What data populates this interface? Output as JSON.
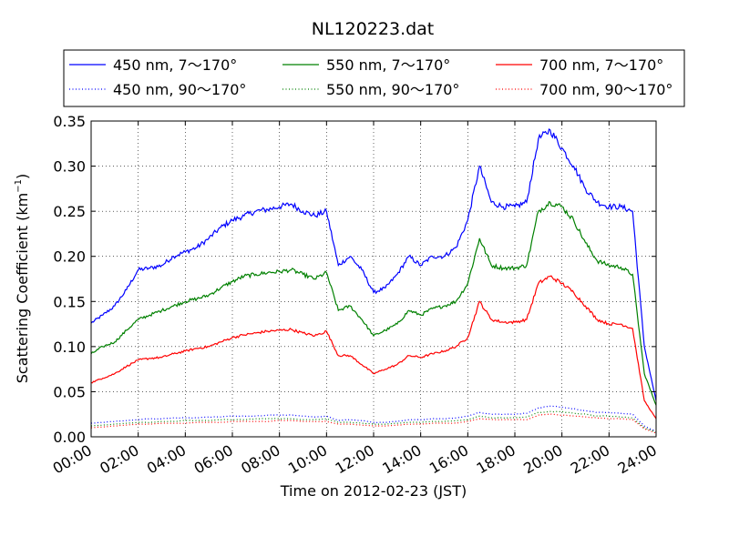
{
  "chart_data": {
    "type": "line",
    "title": "NL120223.dat",
    "xlabel": "Time on 2012-02-23 (JST)",
    "ylabel_main": "Scattering Coefficient (km",
    "ylabel_sup": "−1",
    "ylabel_end": ")",
    "xlim": [
      0,
      24
    ],
    "ylim": [
      0,
      0.35
    ],
    "grid": true,
    "legend_position": "top",
    "x_ticks": [
      {
        "v": 0,
        "label": "00:00"
      },
      {
        "v": 2,
        "label": "02:00"
      },
      {
        "v": 4,
        "label": "04:00"
      },
      {
        "v": 6,
        "label": "06:00"
      },
      {
        "v": 8,
        "label": "08:00"
      },
      {
        "v": 10,
        "label": "10:00"
      },
      {
        "v": 12,
        "label": "12:00"
      },
      {
        "v": 14,
        "label": "14:00"
      },
      {
        "v": 16,
        "label": "16:00"
      },
      {
        "v": 18,
        "label": "18:00"
      },
      {
        "v": 20,
        "label": "20:00"
      },
      {
        "v": 22,
        "label": "22:00"
      },
      {
        "v": 24,
        "label": "24:00"
      }
    ],
    "y_ticks": [
      {
        "v": 0,
        "label": "0.00"
      },
      {
        "v": 0.05,
        "label": "0.05"
      },
      {
        "v": 0.1,
        "label": "0.10"
      },
      {
        "v": 0.15,
        "label": "0.15"
      },
      {
        "v": 0.2,
        "label": "0.20"
      },
      {
        "v": 0.25,
        "label": "0.25"
      },
      {
        "v": 0.3,
        "label": "0.30"
      },
      {
        "v": 0.35,
        "label": "0.35"
      }
    ],
    "x": [
      0,
      0.5,
      1,
      1.5,
      2,
      2.5,
      3,
      3.5,
      4,
      4.5,
      5,
      5.5,
      6,
      6.5,
      7,
      7.5,
      8,
      8.5,
      9,
      9.5,
      10,
      10.5,
      11,
      11.5,
      12,
      12.5,
      13,
      13.5,
      14,
      14.5,
      15,
      15.5,
      16,
      16.5,
      17,
      17.5,
      18,
      18.5,
      19,
      19.5,
      20,
      20.5,
      21,
      21.5,
      22,
      22.5,
      23,
      23.5,
      24
    ],
    "series": [
      {
        "name": "450 nm, 7～170°",
        "color": "#0000ff",
        "style": "solid",
        "values": [
          0.126,
          0.135,
          0.145,
          0.163,
          0.185,
          0.187,
          0.19,
          0.2,
          0.205,
          0.21,
          0.22,
          0.232,
          0.24,
          0.245,
          0.25,
          0.252,
          0.255,
          0.258,
          0.25,
          0.245,
          0.25,
          0.19,
          0.2,
          0.185,
          0.16,
          0.165,
          0.18,
          0.2,
          0.19,
          0.2,
          0.2,
          0.21,
          0.24,
          0.3,
          0.26,
          0.255,
          0.255,
          0.26,
          0.33,
          0.34,
          0.32,
          0.3,
          0.275,
          0.26,
          0.255,
          0.255,
          0.25,
          0.1,
          0.04
        ]
      },
      {
        "name": "550 nm, 7～170°",
        "color": "#008000",
        "style": "solid",
        "values": [
          0.092,
          0.1,
          0.105,
          0.118,
          0.13,
          0.135,
          0.14,
          0.145,
          0.15,
          0.153,
          0.157,
          0.165,
          0.172,
          0.178,
          0.18,
          0.182,
          0.183,
          0.185,
          0.18,
          0.175,
          0.182,
          0.14,
          0.145,
          0.13,
          0.112,
          0.118,
          0.125,
          0.14,
          0.135,
          0.142,
          0.145,
          0.15,
          0.17,
          0.22,
          0.19,
          0.187,
          0.187,
          0.19,
          0.25,
          0.26,
          0.255,
          0.24,
          0.215,
          0.195,
          0.19,
          0.188,
          0.18,
          0.07,
          0.035
        ]
      },
      {
        "name": "700 nm, 7～170°",
        "color": "#ff0000",
        "style": "solid",
        "values": [
          0.06,
          0.065,
          0.07,
          0.078,
          0.085,
          0.087,
          0.088,
          0.092,
          0.095,
          0.098,
          0.1,
          0.105,
          0.11,
          0.113,
          0.115,
          0.117,
          0.118,
          0.119,
          0.115,
          0.112,
          0.117,
          0.09,
          0.09,
          0.08,
          0.07,
          0.075,
          0.08,
          0.09,
          0.088,
          0.092,
          0.095,
          0.1,
          0.11,
          0.15,
          0.13,
          0.127,
          0.127,
          0.13,
          0.17,
          0.178,
          0.17,
          0.16,
          0.145,
          0.13,
          0.125,
          0.125,
          0.12,
          0.04,
          0.02
        ]
      },
      {
        "name": "450 nm, 90～170°",
        "color": "#0000ff",
        "style": "dotted",
        "values": [
          0.015,
          0.016,
          0.017,
          0.018,
          0.019,
          0.02,
          0.02,
          0.021,
          0.021,
          0.021,
          0.022,
          0.022,
          0.023,
          0.023,
          0.023,
          0.024,
          0.024,
          0.024,
          0.023,
          0.022,
          0.023,
          0.018,
          0.019,
          0.018,
          0.016,
          0.016,
          0.017,
          0.019,
          0.019,
          0.02,
          0.02,
          0.021,
          0.023,
          0.027,
          0.025,
          0.025,
          0.025,
          0.026,
          0.032,
          0.034,
          0.033,
          0.031,
          0.029,
          0.027,
          0.027,
          0.026,
          0.025,
          0.012,
          0.006
        ]
      },
      {
        "name": "550 nm, 90～170°",
        "color": "#008000",
        "style": "dotted",
        "values": [
          0.012,
          0.013,
          0.014,
          0.015,
          0.016,
          0.016,
          0.017,
          0.017,
          0.018,
          0.018,
          0.018,
          0.019,
          0.019,
          0.019,
          0.02,
          0.02,
          0.02,
          0.02,
          0.019,
          0.019,
          0.02,
          0.016,
          0.016,
          0.015,
          0.014,
          0.014,
          0.015,
          0.016,
          0.016,
          0.017,
          0.017,
          0.018,
          0.019,
          0.023,
          0.021,
          0.021,
          0.021,
          0.022,
          0.027,
          0.028,
          0.028,
          0.026,
          0.025,
          0.023,
          0.023,
          0.022,
          0.021,
          0.01,
          0.005
        ]
      },
      {
        "name": "700 nm, 90～170°",
        "color": "#ff0000",
        "style": "dotted",
        "values": [
          0.01,
          0.011,
          0.012,
          0.013,
          0.014,
          0.014,
          0.015,
          0.015,
          0.015,
          0.016,
          0.016,
          0.016,
          0.017,
          0.017,
          0.017,
          0.017,
          0.018,
          0.018,
          0.017,
          0.017,
          0.017,
          0.014,
          0.014,
          0.013,
          0.012,
          0.012,
          0.013,
          0.014,
          0.014,
          0.015,
          0.015,
          0.015,
          0.017,
          0.02,
          0.019,
          0.019,
          0.019,
          0.019,
          0.024,
          0.025,
          0.024,
          0.023,
          0.022,
          0.021,
          0.02,
          0.02,
          0.019,
          0.009,
          0.004
        ]
      }
    ]
  }
}
